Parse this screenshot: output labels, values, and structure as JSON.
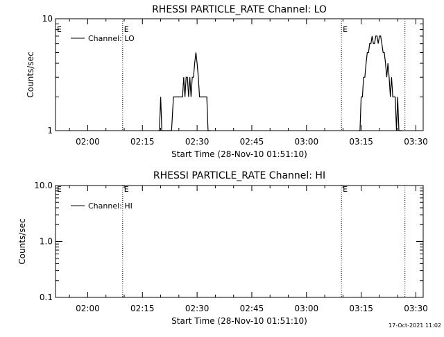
{
  "footer_timestamp": "17-Oct-2021 11:02",
  "chart_data": [
    {
      "type": "line",
      "title": "RHESSI PARTICLE_RATE Channel: LO",
      "xlabel": "Start Time (28-Nov-10 01:51:10)",
      "ylabel": "Counts/sec",
      "yscale": "log",
      "ylim": [
        1,
        10
      ],
      "xlim": [
        "01:51:10",
        "03:32:00"
      ],
      "x_ticks": [
        "02:00",
        "02:15",
        "02:30",
        "02:45",
        "03:00",
        "03:15",
        "03:30"
      ],
      "y_ticks": [
        "1",
        "10"
      ],
      "grid": false,
      "legend": "top-left",
      "legend_entries": [
        "Channel: LO"
      ],
      "event_lines": [
        {
          "x": "02:09:35",
          "label": "E"
        },
        {
          "x": "03:09:35",
          "label": "E"
        },
        {
          "x": "03:27:00",
          "label": ""
        }
      ],
      "series": [
        {
          "name": "Channel: LO",
          "x": [
            "02:19:20",
            "02:19:40",
            "02:20:00",
            "02:20:20",
            "02:20:40",
            "02:22:30",
            "02:23:00",
            "02:23:30",
            "02:24:00",
            "02:25:00",
            "02:26:00",
            "02:26:20",
            "02:26:40",
            "02:27:00",
            "02:27:20",
            "02:27:40",
            "02:28:00",
            "02:28:20",
            "02:28:40",
            "02:29:00",
            "02:29:20",
            "02:29:40",
            "02:30:00",
            "02:30:20",
            "02:30:40",
            "02:31:00",
            "02:31:20",
            "02:31:40",
            "02:32:20",
            "02:32:40",
            "02:33:00",
            "02:33:20",
            "02:33:40",
            "03:14:20",
            "03:14:40",
            "03:15:00",
            "03:15:20",
            "03:15:40",
            "03:16:00",
            "03:16:20",
            "03:16:40",
            "03:17:00",
            "03:17:20",
            "03:17:40",
            "03:18:00",
            "03:18:20",
            "03:18:40",
            "03:19:00",
            "03:19:20",
            "03:19:40",
            "03:20:00",
            "03:20:20",
            "03:20:40",
            "03:21:00",
            "03:21:20",
            "03:21:40",
            "03:22:00",
            "03:22:20",
            "03:22:40",
            "03:23:00",
            "03:23:20",
            "03:23:40",
            "03:24:00",
            "03:24:20",
            "03:24:40",
            "03:25:00",
            "03:25:20",
            "03:25:40",
            "03:26:00",
            "03:26:20"
          ],
          "y": [
            1,
            1,
            2,
            1,
            1,
            1,
            1,
            2,
            2,
            2,
            2,
            3,
            2,
            3,
            3,
            2,
            3,
            2,
            3,
            3,
            4,
            5,
            4,
            3,
            2,
            2,
            2,
            2,
            2,
            2,
            1,
            1,
            1,
            1,
            1,
            2,
            2,
            3,
            3,
            4,
            5,
            5,
            6,
            6,
            7,
            6,
            6,
            7,
            7,
            6,
            7,
            7,
            6,
            5,
            5,
            4,
            3,
            4,
            3,
            2,
            3,
            2,
            2,
            2,
            1,
            2,
            1,
            1,
            1,
            1
          ]
        }
      ]
    },
    {
      "type": "line",
      "title": "RHESSI PARTICLE_RATE Channel: HI",
      "xlabel": "Start Time (28-Nov-10 01:51:10)",
      "ylabel": "Counts/sec",
      "yscale": "log",
      "ylim": [
        0.1,
        10
      ],
      "xlim": [
        "01:51:10",
        "03:32:00"
      ],
      "x_ticks": [
        "02:00",
        "02:15",
        "02:30",
        "02:45",
        "03:00",
        "03:15",
        "03:30"
      ],
      "y_ticks": [
        "0.1",
        "1.0",
        "10.0"
      ],
      "grid": false,
      "legend": "top-left",
      "legend_entries": [
        "Channel: HI"
      ],
      "event_lines": [
        {
          "x": "02:09:35",
          "label": "E"
        },
        {
          "x": "03:09:35",
          "label": "E"
        },
        {
          "x": "03:27:00",
          "label": ""
        }
      ],
      "series": [
        {
          "name": "Channel: HI",
          "x": [],
          "y": []
        }
      ]
    }
  ]
}
